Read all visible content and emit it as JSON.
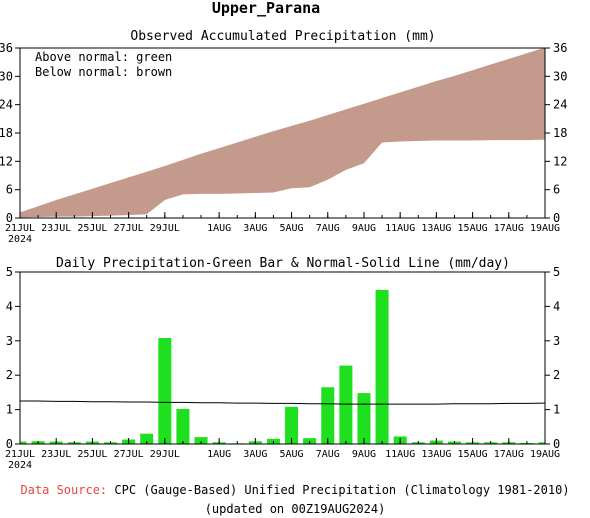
{
  "page_title": "Upper_Parana",
  "footer": {
    "source_label": "Data Source:",
    "source_text": "CPC (Gauge-Based) Unified Precipitation (Climatology 1981-2010)",
    "updated": "(updated on 00Z19AUG2024)"
  },
  "colors": {
    "above_normal": "#00cc00",
    "below_normal": "#c49a8c",
    "bar": "#1ee01e",
    "source_label": "#e8453c"
  },
  "chart_data": [
    {
      "type": "area",
      "title": "Observed Accumulated Precipitation (mm)",
      "legend": [
        "Above normal: green",
        "Below normal: brown"
      ],
      "legend_placement": "top-left",
      "x": [
        "21JUL",
        "22JUL",
        "23JUL",
        "24JUL",
        "25JUL",
        "26JUL",
        "27JUL",
        "28JUL",
        "29JUL",
        "30JUL",
        "31JUL",
        "1AUG",
        "2AUG",
        "3AUG",
        "4AUG",
        "5AUG",
        "6AUG",
        "7AUG",
        "8AUG",
        "9AUG",
        "10AUG",
        "11AUG",
        "12AUG",
        "13AUG",
        "14AUG",
        "15AUG",
        "16AUG",
        "17AUG",
        "18AUG",
        "19AUG"
      ],
      "x_tick_labels": [
        "21JUL",
        "23JUL",
        "25JUL",
        "27JUL",
        "29JUL",
        "1AUG",
        "3AUG",
        "5AUG",
        "7AUG",
        "9AUG",
        "11AUG",
        "13AUG",
        "15AUG",
        "17AUG",
        "19AUG"
      ],
      "x_tick_indices": [
        0,
        2,
        4,
        6,
        8,
        11,
        13,
        15,
        17,
        19,
        21,
        23,
        25,
        27,
        29
      ],
      "year_label": "2024",
      "series": [
        {
          "name": "Observed",
          "values": [
            0.1,
            0.2,
            0.3,
            0.3,
            0.4,
            0.5,
            0.6,
            0.8,
            3.8,
            5.0,
            5.1,
            5.1,
            5.2,
            5.3,
            5.4,
            6.3,
            6.5,
            8.1,
            10.2,
            11.6,
            16.0,
            16.2,
            16.3,
            16.4,
            16.4,
            16.4,
            16.5,
            16.5,
            16.5,
            16.6
          ]
        },
        {
          "name": "Normal",
          "values": [
            1.2,
            2.5,
            3.8,
            5.0,
            6.2,
            7.4,
            8.6,
            9.8,
            11.0,
            12.3,
            13.6,
            14.8,
            16.0,
            17.2,
            18.4,
            19.5,
            20.6,
            21.8,
            23.0,
            24.2,
            25.4,
            26.6,
            27.8,
            29.0,
            30.1,
            31.3,
            32.5,
            33.7,
            34.9,
            36.1
          ]
        }
      ],
      "ylim": [
        0,
        36
      ],
      "y_ticks": [
        0,
        6,
        12,
        18,
        24,
        30,
        36
      ],
      "grid": false
    },
    {
      "type": "bar",
      "title": "Daily Precipitation-Green Bar & Normal-Solid Line (mm/day)",
      "x": [
        "21JUL",
        "22JUL",
        "23JUL",
        "24JUL",
        "25JUL",
        "26JUL",
        "27JUL",
        "28JUL",
        "29JUL",
        "30JUL",
        "31JUL",
        "1AUG",
        "2AUG",
        "3AUG",
        "4AUG",
        "5AUG",
        "6AUG",
        "7AUG",
        "8AUG",
        "9AUG",
        "10AUG",
        "11AUG",
        "12AUG",
        "13AUG",
        "14AUG",
        "15AUG",
        "16AUG",
        "17AUG",
        "18AUG",
        "19AUG"
      ],
      "x_tick_labels": [
        "21JUL",
        "23JUL",
        "25JUL",
        "27JUL",
        "29JUL",
        "1AUG",
        "3AUG",
        "5AUG",
        "7AUG",
        "9AUG",
        "11AUG",
        "13AUG",
        "15AUG",
        "17AUG",
        "19AUG"
      ],
      "x_tick_indices": [
        0,
        2,
        4,
        6,
        8,
        11,
        13,
        15,
        17,
        19,
        21,
        23,
        25,
        27,
        29
      ],
      "year_label": "2024",
      "series": [
        {
          "name": "Daily",
          "values": [
            0.07,
            0.08,
            0.07,
            0.05,
            0.07,
            0.05,
            0.13,
            0.3,
            3.08,
            1.02,
            0.2,
            0.05,
            0.02,
            0.08,
            0.15,
            1.08,
            0.17,
            1.65,
            2.28,
            1.48,
            4.48,
            0.22,
            0.05,
            0.1,
            0.07,
            0.05,
            0.05,
            0.05,
            0.03,
            0.05
          ]
        },
        {
          "name": "Normal",
          "values": [
            1.25,
            1.25,
            1.24,
            1.24,
            1.23,
            1.23,
            1.22,
            1.22,
            1.21,
            1.21,
            1.2,
            1.2,
            1.19,
            1.19,
            1.18,
            1.18,
            1.17,
            1.17,
            1.16,
            1.16,
            1.16,
            1.16,
            1.16,
            1.16,
            1.17,
            1.17,
            1.17,
            1.18,
            1.18,
            1.19
          ]
        }
      ],
      "ylim": [
        0,
        5
      ],
      "y_ticks": [
        0,
        1,
        2,
        3,
        4,
        5
      ],
      "grid": false
    }
  ]
}
